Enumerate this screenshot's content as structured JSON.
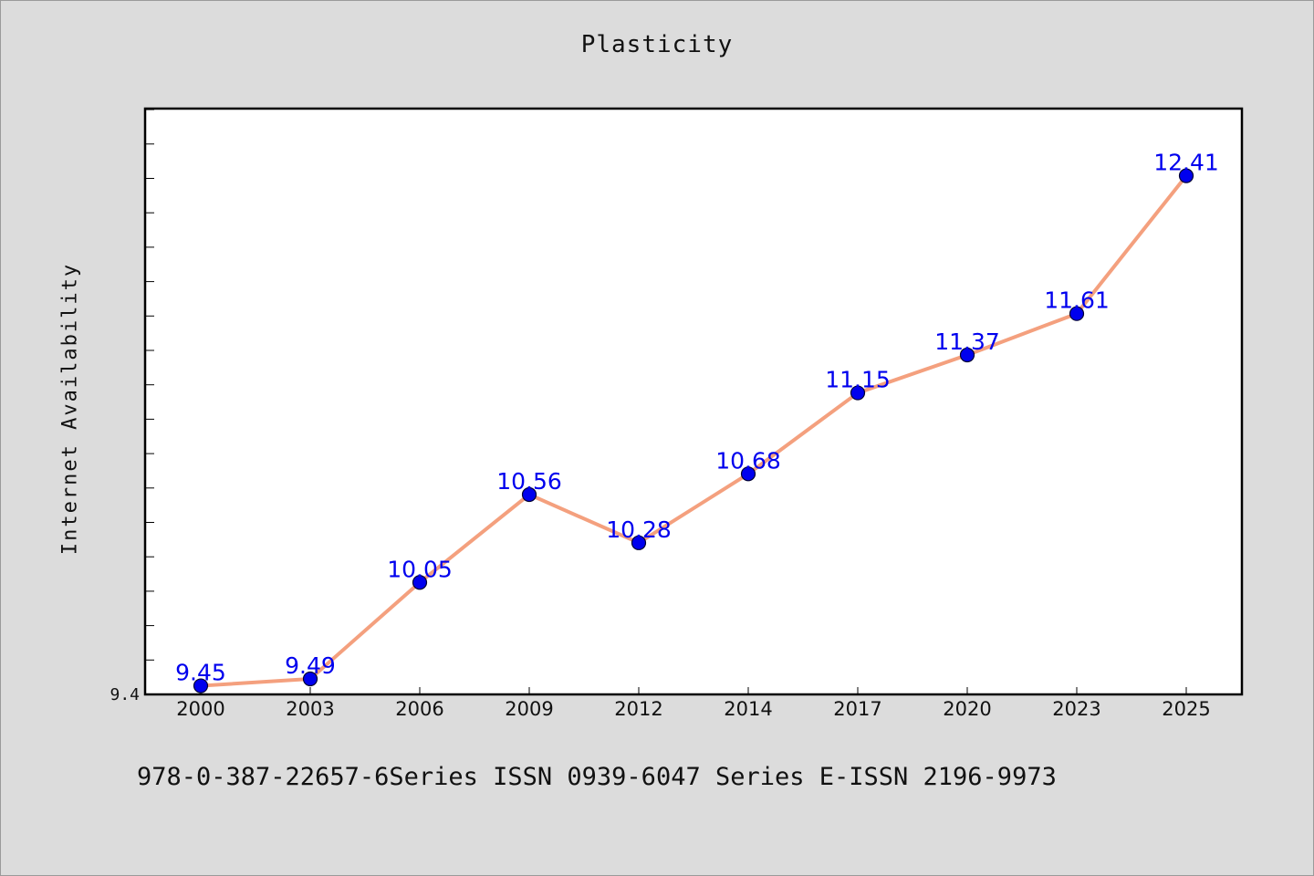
{
  "chart_data": {
    "type": "line",
    "title": "Plasticity",
    "xlabel": "",
    "ylabel": "Internet Availability",
    "categories": [
      "2000",
      "2003",
      "2006",
      "2009",
      "2012",
      "2014",
      "2017",
      "2020",
      "2023",
      "2025"
    ],
    "series": [
      {
        "values": [
          9.45,
          9.49,
          10.05,
          10.56,
          10.28,
          10.68,
          11.15,
          11.37,
          11.61,
          12.41
        ],
        "data_labels": [
          "9.45",
          "9.49",
          "10.05",
          "10.56",
          "10.28",
          "10.68",
          "11.15",
          "11.37",
          "11.61",
          "12.41"
        ]
      }
    ],
    "ylim": [
      9.4,
      12.8
    ],
    "y_tick_labels": [
      "9.4"
    ],
    "grid": false,
    "legend": "none",
    "colors": {
      "line": "#f4a07e",
      "marker": "#0000ee",
      "label": "#0000ee"
    }
  },
  "footer": "978-0-387-22657-6Series ISSN 0939-6047 Series E-ISSN 2196-9973"
}
